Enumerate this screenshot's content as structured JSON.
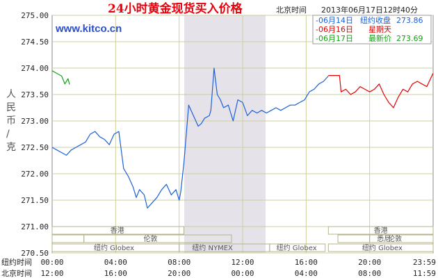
{
  "header": {
    "title": "24小时黄金现货买入价格",
    "timezone_label": "北京时间",
    "timestamp": "2013年06月17日12时40分",
    "url": "www.kitco.cn"
  },
  "legend": [
    {
      "date": "-06月14日",
      "note": "纽约收盘",
      "value": "273.86",
      "color": "#1a5fdc"
    },
    {
      "date": "-06月16日",
      "note": "星期天",
      "value": "",
      "color": "#e10000"
    },
    {
      "date": "-06月17日",
      "note": "最新价",
      "value": "273.69",
      "color": "#12a012"
    }
  ],
  "axis": {
    "ylabel": "人民币/克",
    "row1_label": "纽约时间",
    "row2_label": "北京时间",
    "row1_ticks": [
      "00:00",
      "04:00",
      "08:00",
      "12:00",
      "16:00",
      "20:00",
      "23:59"
    ],
    "row2_ticks": [
      "12:00",
      "16:00",
      "20:00",
      "00:00",
      "04:00",
      "08:00",
      "11:59"
    ]
  },
  "markets": {
    "hongkong": "香港",
    "london": "伦敦",
    "nymex": "纽约 NYMEX",
    "globex": "纽约 Globex",
    "sydney": "悉尼"
  },
  "colors": {
    "prev_day": "#1a5fdc",
    "sunday": "#e10000",
    "today": "#12a012",
    "nymex_band": "#e6e2ea",
    "grid": "#cfcf9c"
  },
  "chart_data": {
    "type": "line",
    "ylabel": "人民币/克",
    "ylim": [
      270.5,
      275.0
    ],
    "yticks": [
      270.5,
      271.0,
      271.5,
      272.0,
      272.5,
      273.0,
      273.5,
      274.0,
      274.5,
      275.0
    ],
    "xlim": [
      0,
      24
    ],
    "x_unit": "hours from 00:00 New York time",
    "grid": true,
    "series": [
      {
        "name": "06月14日",
        "color": "#1a5fdc",
        "x": [
          0,
          0.3,
          0.6,
          0.9,
          1.2,
          1.5,
          1.8,
          2.1,
          2.4,
          2.7,
          3.0,
          3.3,
          3.6,
          3.9,
          4.2,
          4.5,
          4.8,
          5.1,
          5.3,
          5.5,
          5.8,
          6.0,
          6.3,
          6.6,
          6.9,
          7.2,
          7.5,
          7.8,
          8.0,
          8.1,
          8.3,
          8.6,
          8.9,
          9.2,
          9.4,
          9.6,
          9.9,
          10.0,
          10.2,
          10.4,
          10.6,
          10.8,
          11.1,
          11.4,
          11.7,
          12.0,
          12.3,
          12.6,
          12.9,
          13.2,
          13.5,
          13.8,
          14.1,
          14.4,
          14.7,
          15.0,
          15.3,
          15.6,
          15.9,
          16.2,
          16.5,
          16.8,
          17.1,
          17.4
        ],
        "values": [
          272.5,
          272.45,
          272.4,
          272.35,
          272.45,
          272.5,
          272.55,
          272.6,
          272.75,
          272.8,
          272.7,
          272.65,
          272.55,
          272.75,
          272.8,
          272.1,
          271.95,
          271.75,
          271.55,
          271.7,
          271.6,
          271.35,
          271.45,
          271.55,
          271.7,
          271.8,
          271.6,
          271.7,
          271.5,
          271.65,
          272.2,
          273.3,
          273.1,
          272.9,
          272.95,
          273.05,
          273.1,
          273.2,
          274.0,
          273.5,
          273.4,
          273.25,
          273.3,
          273.0,
          273.4,
          273.35,
          273.1,
          273.2,
          273.15,
          273.2,
          273.15,
          273.2,
          273.25,
          273.2,
          273.25,
          273.3,
          273.3,
          273.35,
          273.4,
          273.55,
          273.6,
          273.7,
          273.75,
          273.85
        ]
      },
      {
        "name": "06月16日",
        "color": "#e10000",
        "x": [
          17.4,
          18.1,
          18.2,
          18.5,
          18.8,
          19.1,
          19.4,
          19.7,
          20.0,
          20.3,
          20.6,
          20.9,
          21.2,
          21.5,
          21.8,
          22.1,
          22.4,
          22.7,
          23.0,
          23.3,
          23.6,
          23.99
        ],
        "values": [
          273.86,
          273.86,
          273.55,
          273.6,
          273.5,
          273.55,
          273.65,
          273.6,
          273.55,
          273.6,
          273.7,
          273.5,
          273.35,
          273.25,
          273.45,
          273.6,
          273.55,
          273.7,
          273.75,
          273.7,
          273.65,
          273.9
        ]
      },
      {
        "name": "06月17日",
        "color": "#12a012",
        "x": [
          0,
          0.3,
          0.6,
          0.8,
          1.0,
          1.1
        ],
        "values": [
          273.95,
          273.9,
          273.85,
          273.7,
          273.8,
          273.69
        ]
      }
    ],
    "annotations": [
      "www.kitco.cn",
      "香港",
      "伦敦",
      "纽约 NYMEX",
      "纽约 Globex",
      "悉尼"
    ]
  }
}
